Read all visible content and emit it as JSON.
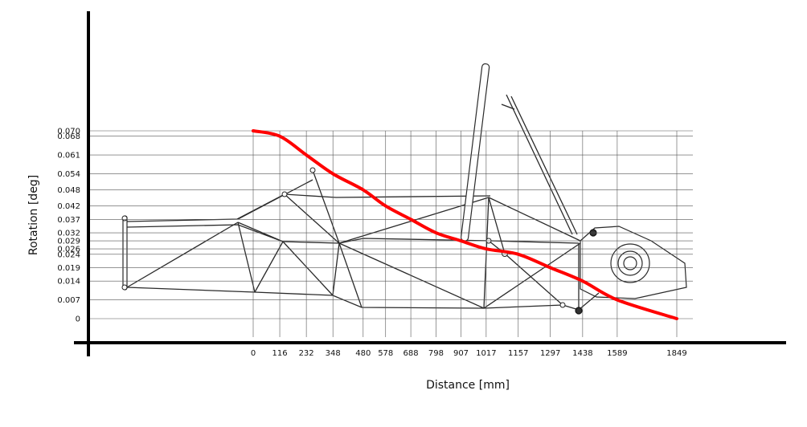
{
  "chart_data": {
    "type": "line",
    "title": "",
    "xlabel": "Distance [mm]",
    "ylabel": "Rotation [deg]",
    "x_ticks": [
      0,
      116,
      232,
      348,
      480,
      578,
      688,
      798,
      907,
      1017,
      1157,
      1297,
      1438,
      1589,
      1849
    ],
    "y_ticks": [
      0,
      0.007,
      0.014,
      0.019,
      0.024,
      0.026,
      0.029,
      0.032,
      0.037,
      0.042,
      0.048,
      0.054,
      0.061,
      0.068,
      0.07
    ],
    "xlim": [
      0,
      1849
    ],
    "ylim": [
      0,
      0.07
    ],
    "grid": true,
    "series": [
      {
        "color": "#ff0000",
        "x": [
          0,
          116,
          232,
          348,
          480,
          578,
          688,
          798,
          907,
          1017,
          1157,
          1297,
          1438,
          1589,
          1849
        ],
        "y": [
          0.07,
          0.068,
          0.061,
          0.054,
          0.048,
          0.042,
          0.037,
          0.032,
          0.029,
          0.026,
          0.024,
          0.019,
          0.014,
          0.007,
          0
        ]
      }
    ]
  }
}
